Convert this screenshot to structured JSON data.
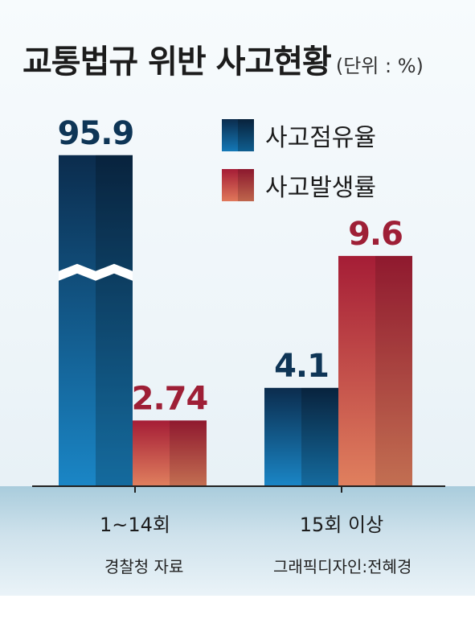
{
  "chart_data": {
    "type": "bar",
    "title": "교통법규 위반 사고현황",
    "unit_label": "(단위 : %)",
    "categories": [
      "1~14회",
      "15회 이상"
    ],
    "series": [
      {
        "name": "사고점유율",
        "values": [
          95.9,
          4.1
        ],
        "color": "#0f5e8f",
        "value_labels": [
          "95.9",
          "4.1"
        ],
        "label_color": "#0e3556"
      },
      {
        "name": "사고발생률",
        "values": [
          2.74,
          9.6
        ],
        "color": "#b03040",
        "value_labels": [
          "2.74",
          "9.6"
        ],
        "label_color": "#9e1f36"
      }
    ],
    "axis_break": true,
    "broken_bar": {
      "series": 0,
      "category": 0,
      "shown_as": 13.8
    },
    "ylim": [
      0,
      15
    ],
    "grid": false,
    "legend_position": "top-right"
  },
  "footnotes": {
    "source": "경찰청 자료",
    "credit": "그래픽디자인:전혜경"
  }
}
